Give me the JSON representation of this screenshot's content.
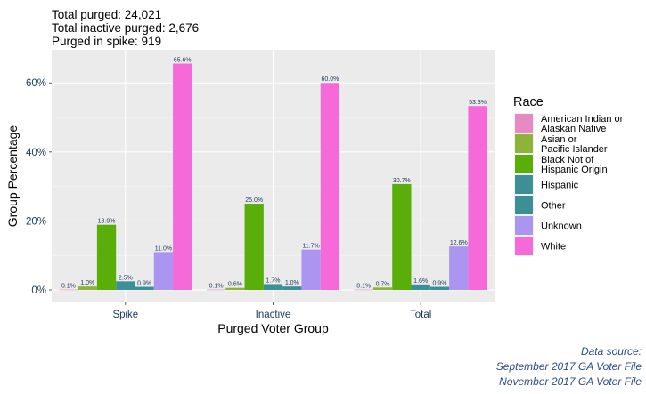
{
  "chart_data": {
    "type": "bar",
    "subtitle_lines": [
      "Total purged: 24,021",
      "Total inactive purged: 2,676",
      "Purged in spike: 919"
    ],
    "xlabel": "Purged Voter Group",
    "ylabel": "Group Percentage",
    "categories": [
      "Spike",
      "Inactive",
      "Total"
    ],
    "ylim": [
      -3.6,
      69.6
    ],
    "yticks": [
      0,
      20,
      40,
      60
    ],
    "ytick_labels": [
      "0%",
      "20%",
      "40%",
      "60%"
    ],
    "legend": {
      "title": "Race",
      "position": "right"
    },
    "series": [
      {
        "name": "American Indian or Alaskan Native",
        "legend_lines": [
          "American Indian or",
          "Alaskan Native"
        ],
        "color": "#e78ac3",
        "values": [
          0.1,
          0.1,
          0.1
        ],
        "labels": [
          "0.1%",
          "0.1%",
          "0.1%"
        ]
      },
      {
        "name": "Asian or Pacific Islander",
        "legend_lines": [
          "Asian or",
          "Pacific Islander"
        ],
        "color": "#8db33a",
        "values": [
          1.0,
          0.6,
          0.7
        ],
        "labels": [
          "1.0%",
          "0.6%",
          "0.7%"
        ]
      },
      {
        "name": "Black Not of Hispanic Origin",
        "legend_lines": [
          "Black Not of",
          "Hispanic Origin"
        ],
        "color": "#5aae0a",
        "values": [
          18.9,
          25.0,
          30.7
        ],
        "labels": [
          "18.9%",
          "25.0%",
          "30.7%"
        ]
      },
      {
        "name": "Hispanic",
        "legend_lines": [
          "Hispanic"
        ],
        "color": "#3d8f96",
        "values": [
          2.5,
          1.7,
          1.6
        ],
        "labels": [
          "2.5%",
          "1.7%",
          "1.6%"
        ]
      },
      {
        "name": "Other",
        "legend_lines": [
          "Other"
        ],
        "color": "#3d8f96",
        "values": [
          0.9,
          1.0,
          0.9
        ],
        "labels": [
          "0.9%",
          "1.0%",
          "0.9%"
        ]
      },
      {
        "name": "Unknown",
        "legend_lines": [
          "Unknown"
        ],
        "color": "#ab95f0",
        "values": [
          11.0,
          11.7,
          12.6
        ],
        "labels": [
          "11.0%",
          "11.7%",
          "12.6%"
        ]
      },
      {
        "name": "White",
        "legend_lines": [
          "White"
        ],
        "color": "#f569d9",
        "values": [
          65.6,
          60.0,
          53.3
        ],
        "labels": [
          "65.6%",
          "60.0%",
          "53.3%"
        ]
      }
    ],
    "caption_lines": [
      "Data source:",
      "September 2017 GA Voter File",
      "November 2017 GA Voter File"
    ]
  }
}
